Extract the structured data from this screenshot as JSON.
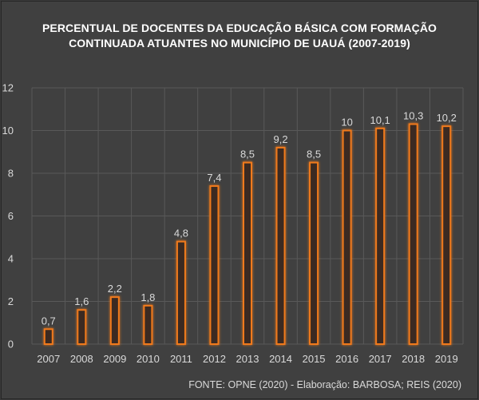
{
  "title": {
    "line1": "PERCENTUAL DE DOCENTES DA EDUCAÇÃO BÁSICA  COM FORMAÇÃO",
    "line2": "CONTINUADA ATUANTES NO MUNICÍPIO DE UAUÁ (2007-2019)"
  },
  "source": "FONTE: OPNE (2020) - Elaboração: BARBOSA; REIS (2020)",
  "colors": {
    "background": "#404040",
    "bar_border": "#f07a1e",
    "bar_glow": "#f5a04d",
    "bar_fill": "#3a2a20",
    "gridline": "#595959"
  },
  "chart_data": {
    "type": "bar",
    "title": "PERCENTUAL DE DOCENTES DA EDUCAÇÃO BÁSICA  COM FORMAÇÃO CONTINUADA ATUANTES NO MUNICÍPIO DE UAUÁ (2007-2019)",
    "categories": [
      "2007",
      "2008",
      "2009",
      "2010",
      "2011",
      "2012",
      "2013",
      "2014",
      "2015",
      "2016",
      "2017",
      "2018",
      "2019"
    ],
    "values": [
      0.7,
      1.6,
      2.2,
      1.8,
      4.8,
      7.4,
      8.5,
      9.2,
      8.5,
      10,
      10.1,
      10.3,
      10.2
    ],
    "data_labels": [
      "0,7",
      "1,6",
      "2,2",
      "1,8",
      "4,8",
      "7,4",
      "8,5",
      "9,2",
      "8,5",
      "10",
      "10,1",
      "10,3",
      "10,2"
    ],
    "y_ticks": [
      0,
      2,
      4,
      6,
      8,
      10,
      12
    ],
    "ylim": [
      0,
      12
    ],
    "xlabel": "",
    "ylabel": "",
    "grid": true,
    "legend": "none"
  }
}
